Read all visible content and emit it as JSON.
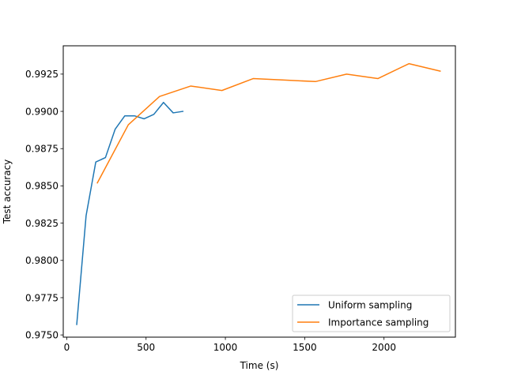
{
  "chart_data": {
    "type": "line",
    "title": "",
    "xlabel": "Time (s)",
    "ylabel": "Test accuracy",
    "xlim": [
      -22,
      2450
    ],
    "ylim": [
      0.97485,
      0.9944
    ],
    "x_ticks": [
      0,
      500,
      1000,
      1500,
      2000
    ],
    "x_tick_labels": [
      "0",
      "500",
      "1000",
      "1500",
      "2000"
    ],
    "y_ticks": [
      0.975,
      0.9775,
      0.98,
      0.9825,
      0.985,
      0.9875,
      0.99,
      0.9925
    ],
    "y_tick_labels": [
      "0.9750",
      "0.9775",
      "0.9800",
      "0.9825",
      "0.9850",
      "0.9875",
      "0.9900",
      "0.9925"
    ],
    "grid": false,
    "legend_position": "lower-right",
    "series": [
      {
        "name": "Uniform sampling",
        "color": "#1f77b4",
        "x": [
          63,
          122,
          183,
          244,
          305,
          366,
          427,
          488,
          549,
          610,
          671,
          732
        ],
        "y": [
          0.9757,
          0.983,
          0.9866,
          0.9869,
          0.9888,
          0.9897,
          0.9897,
          0.9895,
          0.9898,
          0.9906,
          0.9899,
          0.99
        ]
      },
      {
        "name": "Importance sampling",
        "color": "#ff7f0e",
        "x": [
          193,
          388,
          585,
          782,
          978,
          1175,
          1371,
          1568,
          1764,
          1961,
          2157,
          2354
        ],
        "y": [
          0.9852,
          0.9891,
          0.991,
          0.9917,
          0.9914,
          0.9922,
          0.9921,
          0.992,
          0.9925,
          0.9922,
          0.9932,
          0.9927
        ]
      }
    ]
  }
}
